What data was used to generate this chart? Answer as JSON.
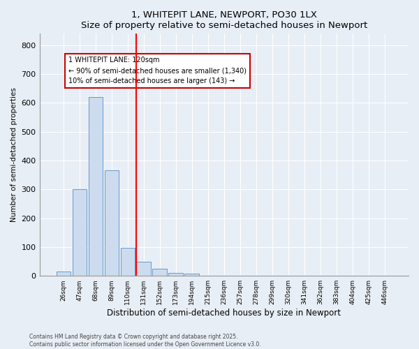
{
  "title1": "1, WHITEPIT LANE, NEWPORT, PO30 1LX",
  "title2": "Size of property relative to semi-detached houses in Newport",
  "xlabel": "Distribution of semi-detached houses by size in Newport",
  "ylabel": "Number of semi-detached properties",
  "categories": [
    "26sqm",
    "47sqm",
    "68sqm",
    "89sqm",
    "110sqm",
    "131sqm",
    "152sqm",
    "173sqm",
    "194sqm",
    "215sqm",
    "236sqm",
    "257sqm",
    "278sqm",
    "299sqm",
    "320sqm",
    "341sqm",
    "362sqm",
    "383sqm",
    "404sqm",
    "425sqm",
    "446sqm"
  ],
  "values": [
    14,
    300,
    620,
    365,
    97,
    50,
    25,
    10,
    8,
    0,
    0,
    0,
    0,
    0,
    0,
    0,
    0,
    0,
    0,
    0,
    0
  ],
  "bar_color": "#ccdcee",
  "bar_edge_color": "#6699cc",
  "ylim": [
    0,
    840
  ],
  "yticks": [
    0,
    100,
    200,
    300,
    400,
    500,
    600,
    700,
    800
  ],
  "red_line_x": 4.52,
  "annotation_line1": "1 WHITEPIT LANE: 120sqm",
  "annotation_line2": "← 90% of semi-detached houses are smaller (1,340)",
  "annotation_line3": "10% of semi-detached houses are larger (143) →",
  "annotation_box_color": "#ffffff",
  "annotation_box_edge": "#cc0000",
  "footer1": "Contains HM Land Registry data © Crown copyright and database right 2025.",
  "footer2": "Contains public sector information licensed under the Open Government Licence v3.0.",
  "bg_color": "#e8eef5",
  "plot_bg_color": "#e8eef5"
}
